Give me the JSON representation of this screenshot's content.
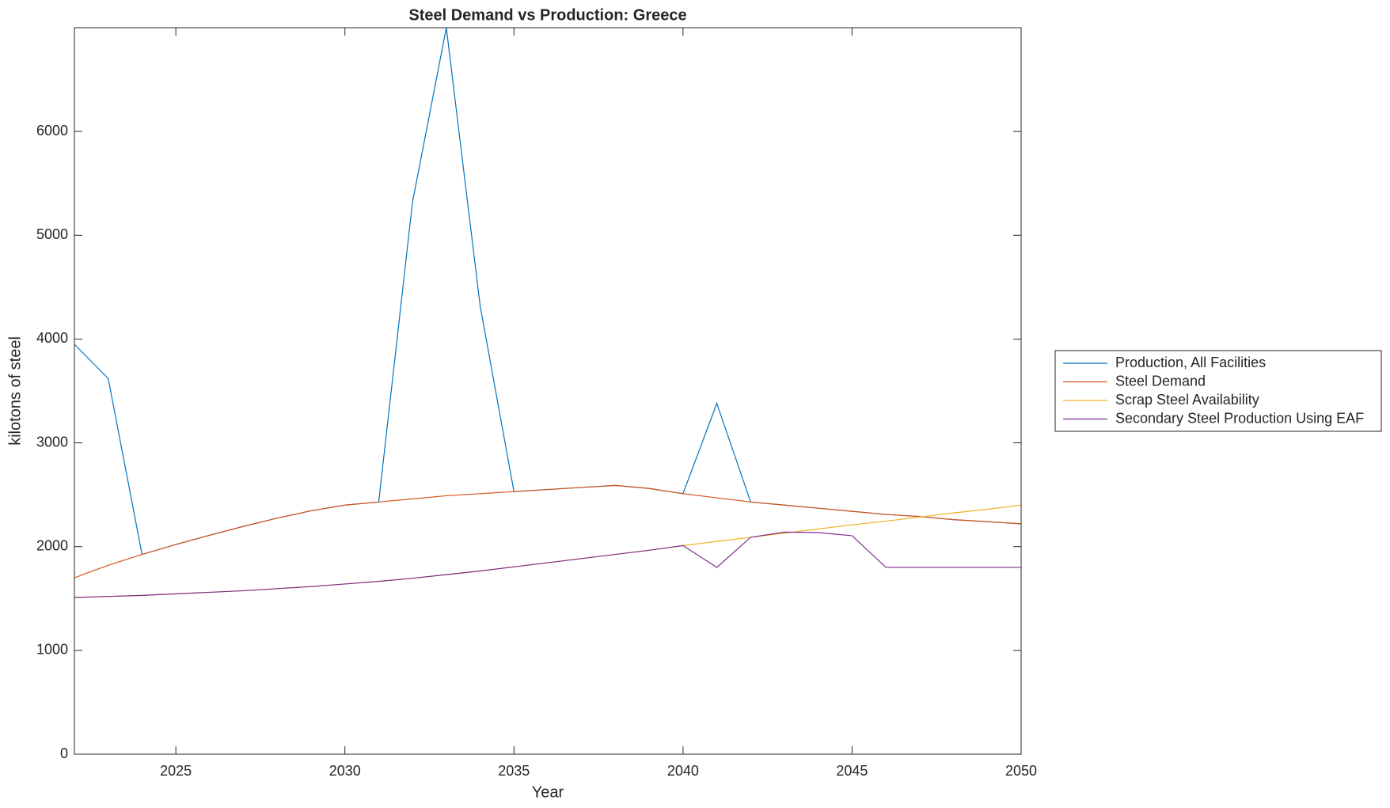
{
  "chart_data": {
    "type": "line",
    "title": "Steel Demand vs Production: Greece",
    "xlabel": "Year",
    "ylabel": "kilotons of steel",
    "x": [
      2022,
      2023,
      2024,
      2025,
      2026,
      2027,
      2028,
      2029,
      2030,
      2031,
      2032,
      2033,
      2034,
      2035,
      2036,
      2037,
      2038,
      2039,
      2040,
      2041,
      2042,
      2043,
      2044,
      2045,
      2046,
      2047,
      2048,
      2049,
      2050
    ],
    "series": [
      {
        "name": "Production, All Facilities",
        "color": "#0072BD",
        "values": [
          3950,
          3620,
          1925,
          2020,
          2110,
          2195,
          2275,
          2345,
          2400,
          2430,
          5320,
          7000,
          4320,
          2530,
          2550,
          2570,
          2590,
          2560,
          2510,
          3380,
          2430,
          2400,
          2370,
          2340,
          2310,
          2290,
          2260,
          2240,
          2220
        ]
      },
      {
        "name": "Steel Demand",
        "color": "#D95319",
        "values": [
          1700,
          1820,
          1925,
          2020,
          2110,
          2195,
          2275,
          2345,
          2400,
          2430,
          2460,
          2490,
          2510,
          2530,
          2550,
          2570,
          2590,
          2560,
          2510,
          2470,
          2430,
          2400,
          2370,
          2340,
          2310,
          2290,
          2260,
          2240,
          2220
        ]
      },
      {
        "name": "Scrap Steel Availability",
        "color": "#EDB120",
        "values": [
          1510,
          1520,
          1530,
          1545,
          1560,
          1575,
          1595,
          1615,
          1640,
          1665,
          1695,
          1730,
          1765,
          1805,
          1845,
          1885,
          1925,
          1965,
          2010,
          2050,
          2090,
          2130,
          2170,
          2210,
          2245,
          2285,
          2325,
          2360,
          2400
        ]
      },
      {
        "name": "Secondary Steel Production Using EAF",
        "color": "#7E2F8E",
        "values": [
          1510,
          1520,
          1530,
          1545,
          1560,
          1575,
          1595,
          1615,
          1640,
          1665,
          1695,
          1730,
          1765,
          1805,
          1845,
          1885,
          1925,
          1965,
          2010,
          1800,
          2090,
          2140,
          2135,
          2105,
          1800,
          1800,
          1800,
          1800,
          1800
        ]
      }
    ],
    "xlim": [
      2022,
      2050
    ],
    "xticks": [
      2025,
      2030,
      2035,
      2040,
      2045,
      2050
    ],
    "ylim": [
      0,
      7000
    ],
    "yticks": [
      0,
      1000,
      2000,
      3000,
      4000,
      5000,
      6000
    ],
    "grid": false,
    "legend": "right"
  }
}
